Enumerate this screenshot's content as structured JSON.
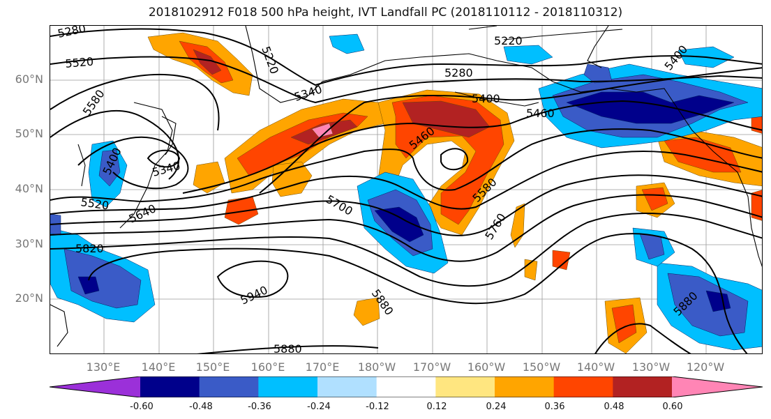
{
  "title": "2018102912 F018 500 hPa height, IVT Landfall PC (2018110112 - 2018110312)",
  "lat_labels": [
    "60°N",
    "50°N",
    "40°N",
    "30°N",
    "20°N"
  ],
  "lon_labels": [
    "130°E",
    "140°E",
    "150°E",
    "160°E",
    "170°E",
    "180°W",
    "170°W",
    "160°W",
    "150°W",
    "140°W",
    "130°W",
    "120°W"
  ],
  "contour_labels": [
    "5280",
    "5220",
    "5520",
    "5220",
    "5280",
    "5400",
    "5340",
    "5400",
    "5460",
    "5580",
    "5460",
    "5400",
    "5340",
    "5520",
    "5580",
    "5640",
    "5700",
    "5760",
    "5820",
    "5940",
    "5880",
    "5880",
    "5880"
  ],
  "colorbar": {
    "tick_labels": [
      "-0.60",
      "-0.48",
      "-0.36",
      "-0.24",
      "-0.12",
      "0.12",
      "0.24",
      "0.36",
      "0.48",
      "0.60"
    ],
    "colors": [
      "#9b30d9",
      "#00008b",
      "#3a5bc7",
      "#00bfff",
      "#b0e0ff",
      "#ffffff",
      "#ffe680",
      "#ffa500",
      "#ff4500",
      "#b22222",
      "#ff85b5"
    ]
  }
}
